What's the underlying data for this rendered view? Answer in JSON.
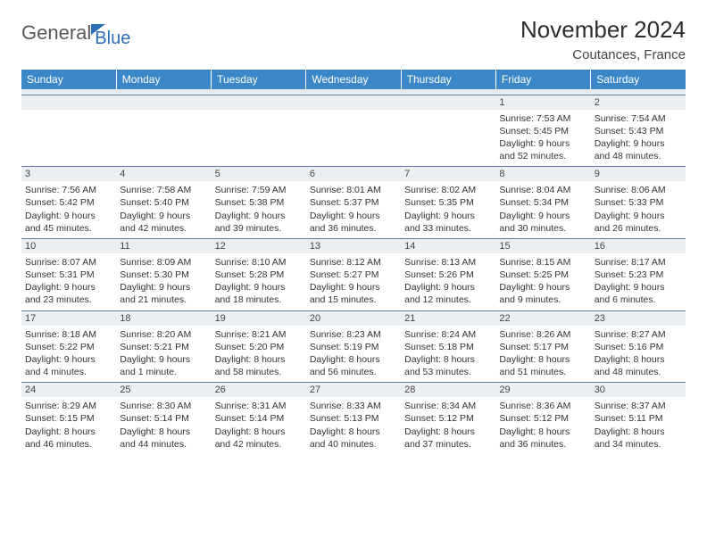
{
  "logo": {
    "word1": "General",
    "word2": "Blue"
  },
  "title": "November 2024",
  "location": "Coutances, France",
  "headers": [
    "Sunday",
    "Monday",
    "Tuesday",
    "Wednesday",
    "Thursday",
    "Friday",
    "Saturday"
  ],
  "colors": {
    "header_bg": "#3b87c8",
    "daybar_bg": "#eceff2",
    "row_border": "#5a7a9a",
    "logo_accent": "#2a6db8"
  },
  "weeks": [
    [
      {
        "day": "",
        "sunrise": "",
        "sunset": "",
        "daylight1": "",
        "daylight2": ""
      },
      {
        "day": "",
        "sunrise": "",
        "sunset": "",
        "daylight1": "",
        "daylight2": ""
      },
      {
        "day": "",
        "sunrise": "",
        "sunset": "",
        "daylight1": "",
        "daylight2": ""
      },
      {
        "day": "",
        "sunrise": "",
        "sunset": "",
        "daylight1": "",
        "daylight2": ""
      },
      {
        "day": "",
        "sunrise": "",
        "sunset": "",
        "daylight1": "",
        "daylight2": ""
      },
      {
        "day": "1",
        "sunrise": "Sunrise: 7:53 AM",
        "sunset": "Sunset: 5:45 PM",
        "daylight1": "Daylight: 9 hours",
        "daylight2": "and 52 minutes."
      },
      {
        "day": "2",
        "sunrise": "Sunrise: 7:54 AM",
        "sunset": "Sunset: 5:43 PM",
        "daylight1": "Daylight: 9 hours",
        "daylight2": "and 48 minutes."
      }
    ],
    [
      {
        "day": "3",
        "sunrise": "Sunrise: 7:56 AM",
        "sunset": "Sunset: 5:42 PM",
        "daylight1": "Daylight: 9 hours",
        "daylight2": "and 45 minutes."
      },
      {
        "day": "4",
        "sunrise": "Sunrise: 7:58 AM",
        "sunset": "Sunset: 5:40 PM",
        "daylight1": "Daylight: 9 hours",
        "daylight2": "and 42 minutes."
      },
      {
        "day": "5",
        "sunrise": "Sunrise: 7:59 AM",
        "sunset": "Sunset: 5:38 PM",
        "daylight1": "Daylight: 9 hours",
        "daylight2": "and 39 minutes."
      },
      {
        "day": "6",
        "sunrise": "Sunrise: 8:01 AM",
        "sunset": "Sunset: 5:37 PM",
        "daylight1": "Daylight: 9 hours",
        "daylight2": "and 36 minutes."
      },
      {
        "day": "7",
        "sunrise": "Sunrise: 8:02 AM",
        "sunset": "Sunset: 5:35 PM",
        "daylight1": "Daylight: 9 hours",
        "daylight2": "and 33 minutes."
      },
      {
        "day": "8",
        "sunrise": "Sunrise: 8:04 AM",
        "sunset": "Sunset: 5:34 PM",
        "daylight1": "Daylight: 9 hours",
        "daylight2": "and 30 minutes."
      },
      {
        "day": "9",
        "sunrise": "Sunrise: 8:06 AM",
        "sunset": "Sunset: 5:33 PM",
        "daylight1": "Daylight: 9 hours",
        "daylight2": "and 26 minutes."
      }
    ],
    [
      {
        "day": "10",
        "sunrise": "Sunrise: 8:07 AM",
        "sunset": "Sunset: 5:31 PM",
        "daylight1": "Daylight: 9 hours",
        "daylight2": "and 23 minutes."
      },
      {
        "day": "11",
        "sunrise": "Sunrise: 8:09 AM",
        "sunset": "Sunset: 5:30 PM",
        "daylight1": "Daylight: 9 hours",
        "daylight2": "and 21 minutes."
      },
      {
        "day": "12",
        "sunrise": "Sunrise: 8:10 AM",
        "sunset": "Sunset: 5:28 PM",
        "daylight1": "Daylight: 9 hours",
        "daylight2": "and 18 minutes."
      },
      {
        "day": "13",
        "sunrise": "Sunrise: 8:12 AM",
        "sunset": "Sunset: 5:27 PM",
        "daylight1": "Daylight: 9 hours",
        "daylight2": "and 15 minutes."
      },
      {
        "day": "14",
        "sunrise": "Sunrise: 8:13 AM",
        "sunset": "Sunset: 5:26 PM",
        "daylight1": "Daylight: 9 hours",
        "daylight2": "and 12 minutes."
      },
      {
        "day": "15",
        "sunrise": "Sunrise: 8:15 AM",
        "sunset": "Sunset: 5:25 PM",
        "daylight1": "Daylight: 9 hours",
        "daylight2": "and 9 minutes."
      },
      {
        "day": "16",
        "sunrise": "Sunrise: 8:17 AM",
        "sunset": "Sunset: 5:23 PM",
        "daylight1": "Daylight: 9 hours",
        "daylight2": "and 6 minutes."
      }
    ],
    [
      {
        "day": "17",
        "sunrise": "Sunrise: 8:18 AM",
        "sunset": "Sunset: 5:22 PM",
        "daylight1": "Daylight: 9 hours",
        "daylight2": "and 4 minutes."
      },
      {
        "day": "18",
        "sunrise": "Sunrise: 8:20 AM",
        "sunset": "Sunset: 5:21 PM",
        "daylight1": "Daylight: 9 hours",
        "daylight2": "and 1 minute."
      },
      {
        "day": "19",
        "sunrise": "Sunrise: 8:21 AM",
        "sunset": "Sunset: 5:20 PM",
        "daylight1": "Daylight: 8 hours",
        "daylight2": "and 58 minutes."
      },
      {
        "day": "20",
        "sunrise": "Sunrise: 8:23 AM",
        "sunset": "Sunset: 5:19 PM",
        "daylight1": "Daylight: 8 hours",
        "daylight2": "and 56 minutes."
      },
      {
        "day": "21",
        "sunrise": "Sunrise: 8:24 AM",
        "sunset": "Sunset: 5:18 PM",
        "daylight1": "Daylight: 8 hours",
        "daylight2": "and 53 minutes."
      },
      {
        "day": "22",
        "sunrise": "Sunrise: 8:26 AM",
        "sunset": "Sunset: 5:17 PM",
        "daylight1": "Daylight: 8 hours",
        "daylight2": "and 51 minutes."
      },
      {
        "day": "23",
        "sunrise": "Sunrise: 8:27 AM",
        "sunset": "Sunset: 5:16 PM",
        "daylight1": "Daylight: 8 hours",
        "daylight2": "and 48 minutes."
      }
    ],
    [
      {
        "day": "24",
        "sunrise": "Sunrise: 8:29 AM",
        "sunset": "Sunset: 5:15 PM",
        "daylight1": "Daylight: 8 hours",
        "daylight2": "and 46 minutes."
      },
      {
        "day": "25",
        "sunrise": "Sunrise: 8:30 AM",
        "sunset": "Sunset: 5:14 PM",
        "daylight1": "Daylight: 8 hours",
        "daylight2": "and 44 minutes."
      },
      {
        "day": "26",
        "sunrise": "Sunrise: 8:31 AM",
        "sunset": "Sunset: 5:14 PM",
        "daylight1": "Daylight: 8 hours",
        "daylight2": "and 42 minutes."
      },
      {
        "day": "27",
        "sunrise": "Sunrise: 8:33 AM",
        "sunset": "Sunset: 5:13 PM",
        "daylight1": "Daylight: 8 hours",
        "daylight2": "and 40 minutes."
      },
      {
        "day": "28",
        "sunrise": "Sunrise: 8:34 AM",
        "sunset": "Sunset: 5:12 PM",
        "daylight1": "Daylight: 8 hours",
        "daylight2": "and 37 minutes."
      },
      {
        "day": "29",
        "sunrise": "Sunrise: 8:36 AM",
        "sunset": "Sunset: 5:12 PM",
        "daylight1": "Daylight: 8 hours",
        "daylight2": "and 36 minutes."
      },
      {
        "day": "30",
        "sunrise": "Sunrise: 8:37 AM",
        "sunset": "Sunset: 5:11 PM",
        "daylight1": "Daylight: 8 hours",
        "daylight2": "and 34 minutes."
      }
    ]
  ]
}
